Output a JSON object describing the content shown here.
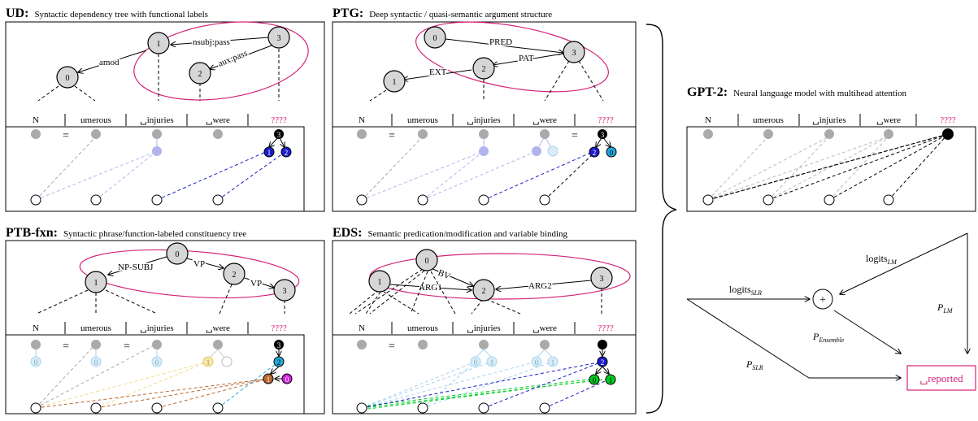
{
  "panels": {
    "ud": {
      "abbr": "UD:",
      "desc": "Syntactic dependency tree with functional labels"
    },
    "ptg": {
      "abbr": "PTG:",
      "desc": "Deep syntactic / quasi-semantic argument structure"
    },
    "ptbfxn": {
      "abbr": "PTB-fxn:",
      "desc": "Syntactic phrase/function-labeled constituency tree"
    },
    "eds": {
      "abbr": "EDS:",
      "desc": "Semantic predication/modification and variable binding"
    },
    "gpt2": {
      "abbr": "GPT-2:",
      "desc": "Neural language model with multihead attention"
    }
  },
  "tokens": [
    "N",
    "umerous",
    "␣injuries",
    "␣were",
    "????"
  ],
  "equals_sign": "=",
  "trees": {
    "ud": {
      "nodes": [
        "0",
        "1",
        "2",
        "3"
      ],
      "edges": [
        "amod",
        "nsubj:pass",
        "aux:pass"
      ]
    },
    "ptg": {
      "nodes": [
        "0",
        "1",
        "2",
        "3"
      ],
      "edges": [
        "PRED",
        "PAT",
        "EXT"
      ]
    },
    "ptbfxn": {
      "nodes": [
        "0",
        "1",
        "2",
        "3"
      ],
      "edges": [
        "NP-SUBJ",
        "VP",
        "VP"
      ]
    },
    "eds": {
      "nodes": [
        "0",
        "1",
        "2",
        "3"
      ],
      "edges": [
        "BV",
        "ARG1",
        "ARG2"
      ]
    }
  },
  "slot_digits": {
    "ud": [
      "3",
      "1",
      "2"
    ],
    "ptg": [
      "3",
      "2",
      "0",
      "0"
    ],
    "ptbfxn": [
      "0",
      "0",
      "0",
      "1",
      "3",
      "2",
      "1",
      "0"
    ],
    "eds": [
      "0",
      "0",
      "1",
      "0",
      "1",
      "2",
      "0",
      "1"
    ]
  },
  "ensemble": {
    "logits_slr": {
      "base": "logits",
      "sub": "SLR"
    },
    "logits_lm": {
      "base": "logits",
      "sub": "LM"
    },
    "p_lm": {
      "base": "P",
      "sub": "LM"
    },
    "p_ensemble": {
      "base": "P",
      "sub": "Ensemble"
    },
    "p_slr": {
      "base": "P",
      "sub": "SLR"
    },
    "plus": "+",
    "output": "␣reported"
  },
  "colors": {
    "magenta": "#d4237a",
    "node_gray": "#d6d6d6",
    "dark_blue": "#1c1ccc",
    "light_blue": "#a8d4ee",
    "lavender": "#b3b3ee",
    "cyan": "#22aadd",
    "green": "#00cc22",
    "brown": "#b86a32",
    "purple": "#cc22dd",
    "yellow": "#f5e9a8"
  }
}
